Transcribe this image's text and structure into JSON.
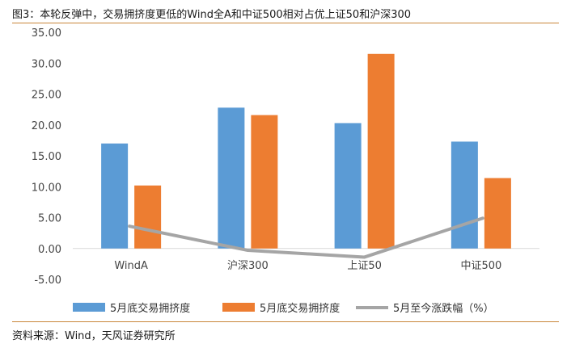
{
  "header": {
    "title": "图3：本轮反弹中，交易拥挤度更低的Wind全A和中证500相对占优上证50和沪深300"
  },
  "footer": {
    "source": "资料来源：Wind，天风证券研究所"
  },
  "colors": {
    "series1": "#5b9bd5",
    "series2": "#ed7d31",
    "series3": "#a5a5a5",
    "rule": "#c9863a",
    "gridline": "#d9d9d9"
  },
  "chart_data": {
    "type": "bar",
    "categories": [
      "WindA",
      "沪深300",
      "上证50",
      "中证500"
    ],
    "ylim": [
      -5,
      35
    ],
    "yticks": [
      "35.00",
      "30.00",
      "25.00",
      "20.00",
      "15.00",
      "10.00",
      "5.00",
      "0.00",
      "-5.00"
    ],
    "series": [
      {
        "name": "5月底交易拥挤度",
        "type": "bar",
        "values": [
          17.0,
          22.8,
          20.3,
          17.3
        ]
      },
      {
        "name": "5月底交易拥挤度",
        "type": "bar",
        "values": [
          10.2,
          21.6,
          31.5,
          11.4
        ]
      },
      {
        "name": "5月至今涨跌幅（%）",
        "type": "line",
        "values": [
          3.6,
          -0.3,
          -1.4,
          4.9
        ]
      }
    ],
    "legend": "bottom"
  }
}
